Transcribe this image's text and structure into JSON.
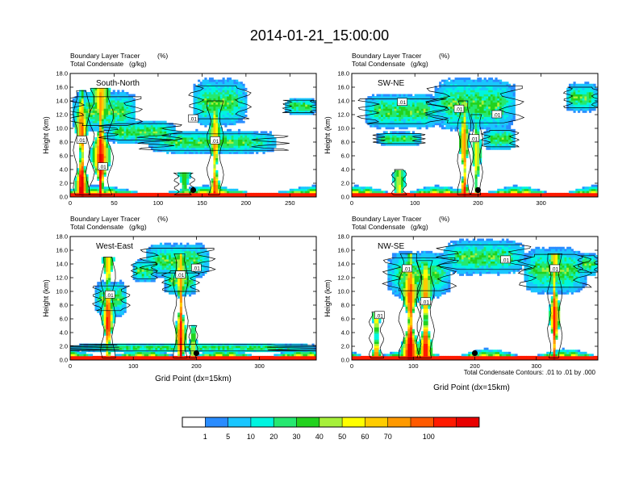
{
  "page_title": "2014-01-21_15:00:00",
  "colors": {
    "levels": [
      "#ffffff",
      "#2a8cff",
      "#19c6ff",
      "#00f5e0",
      "#25e870",
      "#22d21e",
      "#a6f03a",
      "#ffff00",
      "#ffcc00",
      "#ff9900",
      "#ff5a00",
      "#ff1a00",
      "#e80000"
    ],
    "contour": "#000000",
    "marker": "#000000"
  },
  "colorbar": {
    "ticks": [
      "1",
      "5",
      "10",
      "20",
      "30",
      "40",
      "50",
      "60",
      "70",
      "100"
    ]
  },
  "contour_info": "Total Condensate Contours: .01 to .01 by .000",
  "chart_data": [
    {
      "type": "heatmap",
      "id": "south-north",
      "panel_label": "South-North",
      "title_line1": "Boundary Layer Tracer",
      "units_line1": "(%)",
      "title_line2": "Total Condensate",
      "units_line2": "(g/kg)",
      "ylabel": "Height (km)",
      "xlabel": "",
      "xlim": [
        0,
        280
      ],
      "ylim": [
        0,
        18
      ],
      "xticks": [
        0,
        50,
        100,
        150,
        200,
        250
      ],
      "yticks": [
        "0.0",
        "2.0",
        "4.0",
        "6.0",
        "8.0",
        "10.0",
        "12.0",
        "14.0",
        "16.0",
        "18.0"
      ],
      "marker": [
        140,
        1.0
      ],
      "contour_labels": [
        {
          "text": ".01",
          "x": 13,
          "y": 8.3
        },
        {
          "text": ".01",
          "x": 37,
          "y": 4.4
        },
        {
          "text": ".01",
          "x": 140,
          "y": 11.4
        },
        {
          "text": ".01",
          "x": 165,
          "y": 8.2
        }
      ],
      "columns": [
        {
          "x": 13,
          "w": 8,
          "top": 15.5,
          "core": 1.0
        },
        {
          "x": 35,
          "w": 12,
          "top": 15.8,
          "core": 1.0
        },
        {
          "x": 130,
          "w": 10,
          "top": 3.5,
          "core": 0.4
        },
        {
          "x": 165,
          "w": 8,
          "top": 14.0,
          "core": 0.8
        }
      ],
      "anvils": [
        {
          "x1": 2,
          "x2": 75,
          "y": 12.5,
          "h": 3.5
        },
        {
          "x1": 40,
          "x2": 120,
          "y": 9.5,
          "h": 2.0
        },
        {
          "x1": 90,
          "x2": 235,
          "y": 8.0,
          "h": 2.0
        },
        {
          "x1": 140,
          "x2": 200,
          "y": 13.8,
          "h": 4.0
        },
        {
          "x1": 245,
          "x2": 280,
          "y": 13.2,
          "h": 1.5
        }
      ]
    },
    {
      "type": "heatmap",
      "id": "sw-ne",
      "panel_label": "SW-NE",
      "title_line1": "Boundary Layer Tracer",
      "units_line1": "(%)",
      "title_line2": "Total Condensate",
      "units_line2": "(g/kg)",
      "ylabel": "Height (km)",
      "xlabel": "",
      "xlim": [
        0,
        390
      ],
      "ylim": [
        0,
        18
      ],
      "xticks": [
        0,
        100,
        200,
        300
      ],
      "yticks": [
        "0.0",
        "2.0",
        "4.0",
        "6.0",
        "8.0",
        "10.0",
        "12.0",
        "14.0",
        "16.0",
        "18.0"
      ],
      "marker": [
        200,
        1.0
      ],
      "contour_labels": [
        {
          "text": ".01",
          "x": 80,
          "y": 13.8
        },
        {
          "text": ".01",
          "x": 170,
          "y": 12.8
        },
        {
          "text": ".01",
          "x": 194,
          "y": 8.5
        },
        {
          "text": ".01",
          "x": 230,
          "y": 12.0
        }
      ],
      "columns": [
        {
          "x": 75,
          "w": 10,
          "top": 4.0,
          "core": 0.5
        },
        {
          "x": 178,
          "w": 9,
          "top": 14.0,
          "core": 0.9
        },
        {
          "x": 198,
          "w": 8,
          "top": 12.0,
          "core": 0.6
        }
      ],
      "anvils": [
        {
          "x1": 20,
          "x2": 140,
          "y": 12.5,
          "h": 3.0
        },
        {
          "x1": 130,
          "x2": 260,
          "y": 13.5,
          "h": 4.5
        },
        {
          "x1": 40,
          "x2": 110,
          "y": 8.5,
          "h": 1.2
        },
        {
          "x1": 210,
          "x2": 260,
          "y": 8.5,
          "h": 2.0
        },
        {
          "x1": 340,
          "x2": 390,
          "y": 14.5,
          "h": 2.5
        }
      ]
    },
    {
      "type": "heatmap",
      "id": "west-east",
      "panel_label": "West-East",
      "title_line1": "Boundary Layer Tracer",
      "units_line1": "(%)",
      "title_line2": "Total Condensate",
      "units_line2": "(g/kg)",
      "ylabel": "Height (km)",
      "xlabel": "Grid Point (dx=15km)",
      "xlim": [
        0,
        390
      ],
      "ylim": [
        0,
        18
      ],
      "xticks": [
        0,
        100,
        200,
        300
      ],
      "yticks": [
        "0.0",
        "2.0",
        "4.0",
        "6.0",
        "8.0",
        "10.0",
        "12.0",
        "14.0",
        "16.0",
        "18.0"
      ],
      "marker": [
        200,
        1.0
      ],
      "contour_labels": [
        {
          "text": ".01",
          "x": 63,
          "y": 9.5
        },
        {
          "text": ".01",
          "x": 175,
          "y": 12.4
        },
        {
          "text": ".01",
          "x": 200,
          "y": 13.4
        }
      ],
      "columns": [
        {
          "x": 60,
          "w": 10,
          "top": 15.0,
          "core": 1.0
        },
        {
          "x": 175,
          "w": 10,
          "top": 15.5,
          "core": 0.9
        },
        {
          "x": 195,
          "w": 6,
          "top": 5.0,
          "core": 0.5
        }
      ],
      "anvils": [
        {
          "x1": 40,
          "x2": 90,
          "y": 9.0,
          "h": 3.0
        },
        {
          "x1": 120,
          "x2": 220,
          "y": 14.5,
          "h": 3.0
        },
        {
          "x1": 100,
          "x2": 135,
          "y": 13.0,
          "h": 2.0
        },
        {
          "x1": 150,
          "x2": 200,
          "y": 11.5,
          "h": 2.5
        },
        {
          "x1": 0,
          "x2": 390,
          "y": 1.8,
          "h": 0.8
        }
      ]
    },
    {
      "type": "heatmap",
      "id": "nw-se",
      "panel_label": "NW-SE",
      "title_line1": "Boundary Layer Tracer",
      "units_line1": "(%)",
      "title_line2": "Total Condensate",
      "units_line2": "(g/kg)",
      "ylabel": "Height (km)",
      "xlabel": "Grid Point (dx=15km)",
      "xlim": [
        0,
        400
      ],
      "ylim": [
        0,
        18
      ],
      "xticks": [
        0,
        100,
        200,
        300
      ],
      "yticks": [
        "0.0",
        "2.0",
        "4.0",
        "6.0",
        "8.0",
        "10.0",
        "12.0",
        "14.0",
        "16.0",
        "18.0"
      ],
      "marker": [
        200,
        1.0
      ],
      "contour_labels": [
        {
          "text": ".01",
          "x": 45,
          "y": 6.5
        },
        {
          "text": ".01",
          "x": 90,
          "y": 13.3
        },
        {
          "text": ".01",
          "x": 120,
          "y": 8.5
        },
        {
          "text": ".01",
          "x": 250,
          "y": 14.6
        },
        {
          "text": ".01",
          "x": 330,
          "y": 13.3
        }
      ],
      "columns": [
        {
          "x": 40,
          "w": 10,
          "top": 7.0,
          "core": 0.8
        },
        {
          "x": 95,
          "w": 16,
          "top": 15.5,
          "core": 1.0
        },
        {
          "x": 120,
          "w": 12,
          "top": 14.5,
          "core": 0.9
        },
        {
          "x": 330,
          "w": 10,
          "top": 15.5,
          "core": 1.0
        }
      ],
      "anvils": [
        {
          "x1": 60,
          "x2": 160,
          "y": 12.5,
          "h": 4.0
        },
        {
          "x1": 150,
          "x2": 280,
          "y": 15.0,
          "h": 3.0
        },
        {
          "x1": 280,
          "x2": 380,
          "y": 13.0,
          "h": 4.0
        },
        {
          "x1": 370,
          "x2": 400,
          "y": 14.0,
          "h": 2.0
        }
      ]
    }
  ]
}
